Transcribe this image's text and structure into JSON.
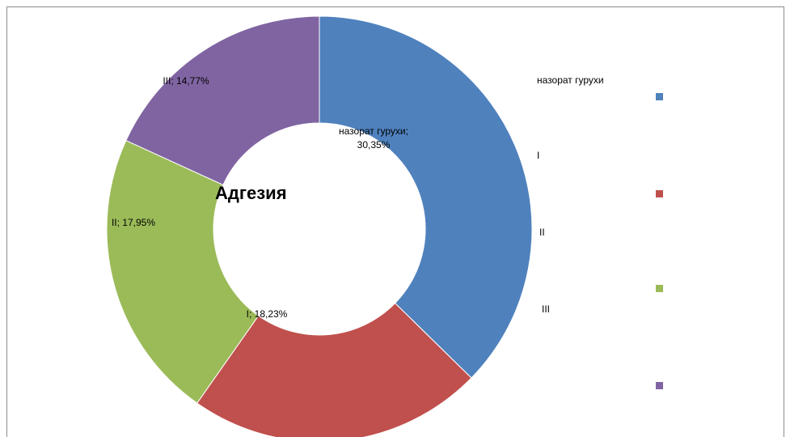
{
  "chart_data": {
    "type": "donut",
    "title": "Адгезия",
    "categories": [
      "назорат гурухи",
      "I",
      "II",
      "III"
    ],
    "values": [
      30.35,
      18.23,
      17.95,
      14.77
    ],
    "value_labels": [
      "назорат гурухи; 30,35%",
      "I; 18,23%",
      "II; 17,95%",
      "III; 14,77%"
    ],
    "colors": [
      "#4f81bd",
      "#c0504d",
      "#9bbb59",
      "#8064a2"
    ],
    "legend": "right"
  }
}
